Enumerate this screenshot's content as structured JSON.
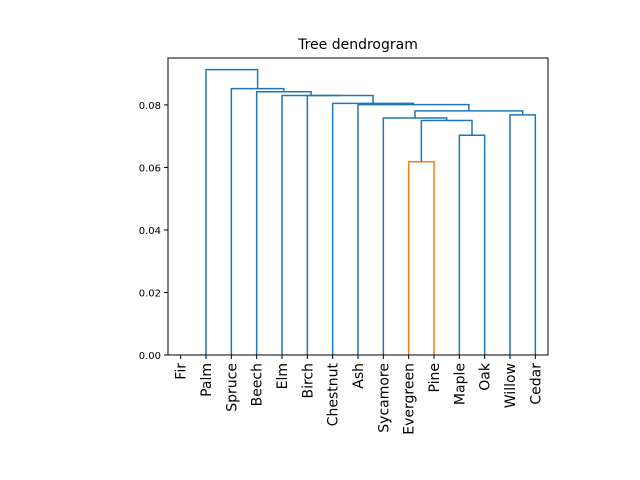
{
  "chart_data": {
    "type": "dendrogram",
    "title": "Tree dendrogram",
    "xlabel": "",
    "ylabel": "",
    "ylim": [
      0,
      0.095
    ],
    "yticks": [
      0.0,
      0.02,
      0.04,
      0.06,
      0.08
    ],
    "ytick_labels": [
      "0.00",
      "0.02",
      "0.04",
      "0.06",
      "0.08"
    ],
    "leaves": [
      "Fir",
      "Palm",
      "Spruce",
      "Beech",
      "Elm",
      "Birch",
      "Chestnut",
      "Ash",
      "Sycamore",
      "Evergreen",
      "Pine",
      "Maple",
      "Oak",
      "Willow",
      "Cedar"
    ],
    "colors": {
      "above_threshold": "#1f77b4",
      "cluster": "#ff7f0e"
    },
    "merges": [
      {
        "left": "Evergreen",
        "right": "Pine",
        "height": 0.0618,
        "color": "#ff7f0e"
      },
      {
        "left": "Maple",
        "right": "Oak",
        "height": 0.0703,
        "color": "#1f77b4"
      },
      {
        "left": "(Evergreen,Pine)",
        "right": "(Maple,Oak)",
        "height": 0.075,
        "color": "#1f77b4"
      },
      {
        "left": "Sycamore",
        "right": "((Evergreen,Pine),(Maple,Oak))",
        "height": 0.0758,
        "color": "#1f77b4"
      },
      {
        "left": "Willow",
        "right": "Cedar",
        "height": 0.0768,
        "color": "#1f77b4"
      },
      {
        "left": "(Sycamore,...)",
        "right": "(Willow,Cedar)",
        "height": 0.0781,
        "color": "#1f77b4"
      },
      {
        "left": "Ash",
        "right": "(Sycamore,...,Cedar)",
        "height": 0.0801,
        "color": "#1f77b4"
      },
      {
        "left": "Chestnut",
        "right": "(Ash,...)",
        "height": 0.0805,
        "color": "#1f77b4"
      },
      {
        "left": "Birch",
        "right": "(Chestnut,...)",
        "height": 0.083,
        "color": "#1f77b4"
      },
      {
        "left": "Elm",
        "right": "(Birch,...)",
        "height": 0.083,
        "color": "#1f77b4"
      },
      {
        "left": "Beech",
        "right": "(Elm,...)",
        "height": 0.0842,
        "color": "#1f77b4"
      },
      {
        "left": "Spruce",
        "right": "(Beech,...)",
        "height": 0.0852,
        "color": "#1f77b4"
      },
      {
        "left": "Palm",
        "right": "(Spruce,...)",
        "height": 0.0913,
        "color": "#1f77b4"
      }
    ],
    "links": [
      {
        "xl": 9,
        "yl": 0,
        "xr": 10,
        "yr": 0,
        "h": 0.0618,
        "color": "#ff7f0e"
      },
      {
        "xl": 11,
        "yl": 0,
        "xr": 12,
        "yr": 0,
        "h": 0.0703,
        "color": "#1f77b4"
      },
      {
        "xl": 9.5,
        "yl": 0.0618,
        "xr": 11.5,
        "yr": 0.0703,
        "h": 0.075,
        "color": "#1f77b4"
      },
      {
        "xl": 8,
        "yl": 0,
        "xr": 10.5,
        "yr": 0.075,
        "h": 0.0758,
        "color": "#1f77b4"
      },
      {
        "xl": 13,
        "yl": 0,
        "xr": 14,
        "yr": 0,
        "h": 0.0768,
        "color": "#1f77b4"
      },
      {
        "xl": 9.25,
        "yl": 0.0758,
        "xr": 13.5,
        "yr": 0.0768,
        "h": 0.0781,
        "color": "#1f77b4"
      },
      {
        "xl": 7,
        "yl": 0,
        "xr": 11.375,
        "yr": 0.0781,
        "h": 0.0801,
        "color": "#1f77b4"
      },
      {
        "xl": 6,
        "yl": 0,
        "xr": 9.1875,
        "yr": 0.0801,
        "h": 0.0805,
        "color": "#1f77b4"
      },
      {
        "xl": 5,
        "yl": 0,
        "xr": 7.59375,
        "yr": 0.0805,
        "h": 0.083,
        "color": "#1f77b4"
      },
      {
        "xl": 4,
        "yl": 0,
        "xr": 6.296875,
        "yr": 0.083,
        "h": 0.083,
        "color": "#1f77b4"
      },
      {
        "xl": 3,
        "yl": 0,
        "xr": 5.1484375,
        "yr": 0.083,
        "h": 0.0842,
        "color": "#1f77b4"
      },
      {
        "xl": 2,
        "yl": 0,
        "xr": 4.07421875,
        "yr": 0.0842,
        "h": 0.0852,
        "color": "#1f77b4"
      },
      {
        "xl": 1,
        "yl": 0,
        "xr": 3.037109375,
        "yr": 0.0852,
        "h": 0.0913,
        "color": "#1f77b4"
      }
    ]
  }
}
